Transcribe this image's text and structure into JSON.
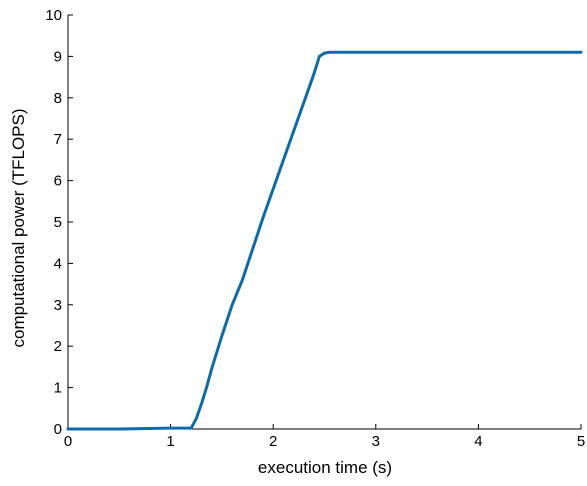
{
  "chart_data": {
    "type": "line",
    "title": "",
    "xlabel": "execution time (s)",
    "ylabel": "computational power (TFLOPS)",
    "xlim": [
      0,
      5
    ],
    "ylim": [
      0,
      10
    ],
    "x_ticks": [
      0,
      1,
      2,
      3,
      4,
      5
    ],
    "y_ticks": [
      0,
      1,
      2,
      3,
      4,
      5,
      6,
      7,
      8,
      9,
      10
    ],
    "grid": false,
    "legend": "none",
    "series": [
      {
        "color": "#0e6ba8",
        "x": [
          0,
          0.5,
          1.0,
          1.2,
          1.25,
          1.3,
          1.35,
          1.4,
          1.5,
          1.6,
          1.7,
          1.8,
          1.9,
          2.0,
          2.1,
          2.2,
          2.3,
          2.4,
          2.45,
          2.5,
          2.55,
          2.6,
          3.0,
          4.0,
          5.0
        ],
        "y": [
          0,
          0,
          0.02,
          0.02,
          0.25,
          0.6,
          1.0,
          1.45,
          2.25,
          3.0,
          3.6,
          4.35,
          5.1,
          5.8,
          6.5,
          7.2,
          7.9,
          8.6,
          9.0,
          9.08,
          9.1,
          9.1,
          9.1,
          9.1,
          9.1
        ]
      }
    ]
  }
}
